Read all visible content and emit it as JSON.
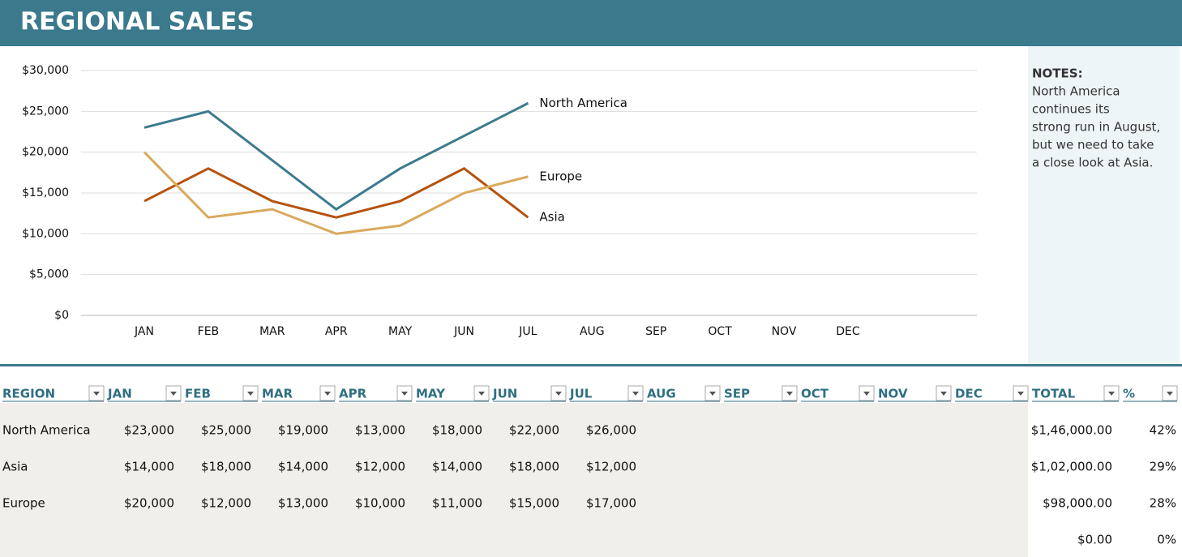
{
  "header": {
    "title": "REGIONAL SALES"
  },
  "chart_data": {
    "type": "line",
    "categories": [
      "JAN",
      "FEB",
      "MAR",
      "APR",
      "MAY",
      "JUN",
      "JUL",
      "AUG",
      "SEP",
      "OCT",
      "NOV",
      "DEC"
    ],
    "series": [
      {
        "name": "North America",
        "color": "#3b7b8f",
        "values": [
          23000,
          25000,
          19000,
          13000,
          18000,
          22000,
          26000,
          null,
          null,
          null,
          null,
          null
        ]
      },
      {
        "name": "Asia",
        "color": "#b5530f",
        "values": [
          14000,
          18000,
          14000,
          12000,
          14000,
          18000,
          12000,
          null,
          null,
          null,
          null,
          null
        ]
      },
      {
        "name": "Europe",
        "color": "#d9a95c",
        "values": [
          20000,
          12000,
          13000,
          10000,
          11000,
          15000,
          17000,
          null,
          null,
          null,
          null,
          null
        ]
      }
    ],
    "ylim": [
      0,
      30000
    ],
    "yticks": [
      {
        "value": 0,
        "label": "$0"
      },
      {
        "value": 5000,
        "label": "$5,000"
      },
      {
        "value": 10000,
        "label": "$10,000"
      },
      {
        "value": 15000,
        "label": "$15,000"
      },
      {
        "value": 20000,
        "label": "$20,000"
      },
      {
        "value": 25000,
        "label": "$25,000"
      },
      {
        "value": 30000,
        "label": "$30,000"
      }
    ],
    "grid": true
  },
  "notes": {
    "title": "NOTES:",
    "lines": [
      "North America",
      "continues its",
      "strong run in August,",
      "but we need to take",
      "a close look at Asia."
    ]
  },
  "table": {
    "headers": [
      "REGION",
      "JAN",
      "FEB",
      "MAR",
      "APR",
      "MAY",
      "JUN",
      "JUL",
      "AUG",
      "SEP",
      "OCT",
      "NOV",
      "DEC",
      "TOTAL",
      "%"
    ],
    "rows": [
      {
        "region": "North America",
        "values": [
          "$23,000",
          "$25,000",
          "$19,000",
          "$13,000",
          "$18,000",
          "$22,000",
          "$26,000"
        ],
        "total": "$1,46,000.00",
        "percent": "42%"
      },
      {
        "region": "Asia",
        "values": [
          "$14,000",
          "$18,000",
          "$14,000",
          "$12,000",
          "$14,000",
          "$18,000",
          "$12,000"
        ],
        "total": "$1,02,000.00",
        "percent": "29%"
      },
      {
        "region": "Europe",
        "values": [
          "$20,000",
          "$12,000",
          "$13,000",
          "$10,000",
          "$11,000",
          "$15,000",
          "$17,000"
        ],
        "total": "$98,000.00",
        "percent": "28%"
      },
      {
        "total": "$0.00",
        "percent": "0%"
      }
    ]
  }
}
